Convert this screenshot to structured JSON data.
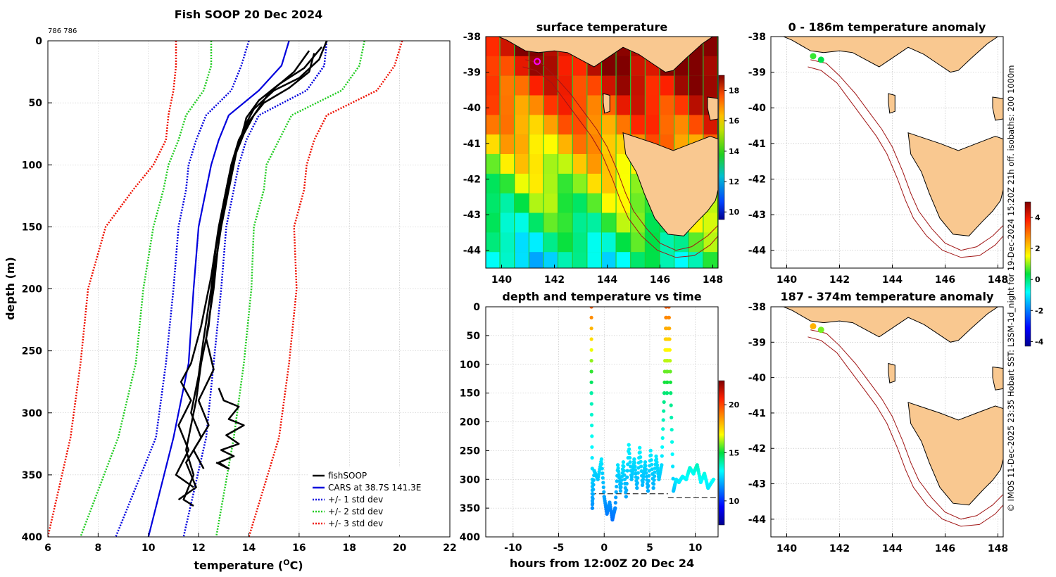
{
  "figure_title": "Fish SOOP 20 Dec 2024",
  "corner_id": "786 786",
  "credit": "© IMOS 11-Dec-2025 23:35 Hobart SST: L3SM-1d_night for 19-Dec-2024 15:20Z 21h off. isobaths: 200  1000m",
  "colors": {
    "fishsoop": "#000000",
    "cars": "#0000dd",
    "std1": "#0000dd",
    "std2": "#22cc22",
    "std3": "#ee1100",
    "land": "#f9c890",
    "grid": "#bbbbbb",
    "isobath": "#a01515",
    "track": "#ff00ff"
  },
  "chart_data": [
    {
      "id": "profile",
      "type": "line",
      "title": "Fish SOOP 20 Dec 2024",
      "xlabel": "temperature (",
      "xlabel_sup": "O",
      "xlabel_tail": "C)",
      "ylabel": "depth (m)",
      "xlim": [
        6,
        22
      ],
      "ylim": [
        0,
        400
      ],
      "y_reversed": true,
      "xticks": [
        6,
        8,
        10,
        12,
        14,
        16,
        18,
        20,
        22
      ],
      "yticks": [
        0,
        50,
        100,
        150,
        200,
        250,
        300,
        350,
        400
      ],
      "legend_position": "bottom-right",
      "legend": [
        "fishSOOP",
        "CARS at 38.7S 141.3E",
        "+/- 1 std dev",
        "+/- 2 std dev",
        "+/- 3 std dev"
      ],
      "cars_mean": {
        "temp": [
          15.6,
          15.3,
          14.4,
          13.2,
          12.8,
          12.5,
          12.3,
          12.0,
          11.8,
          11.6,
          11.0,
          10.0
        ],
        "depth": [
          0,
          20,
          40,
          60,
          80,
          100,
          120,
          150,
          200,
          260,
          320,
          400
        ]
      },
      "std1": {
        "lower": [
          14.0,
          13.7,
          13.3,
          12.3,
          11.9,
          11.6,
          11.5,
          11.2,
          11.0,
          10.7,
          10.3,
          8.7
        ],
        "upper": [
          17.1,
          17.0,
          16.3,
          14.4,
          13.9,
          13.6,
          13.4,
          13.1,
          12.9,
          12.6,
          12.3,
          11.4
        ]
      },
      "std2": {
        "lower": [
          12.5,
          12.5,
          12.2,
          11.5,
          11.2,
          10.8,
          10.6,
          10.2,
          9.8,
          9.5,
          8.8,
          7.3
        ],
        "upper": [
          18.6,
          18.4,
          17.7,
          15.7,
          15.2,
          14.7,
          14.6,
          14.2,
          14.1,
          13.8,
          13.4,
          12.7
        ]
      },
      "std3": {
        "lower": [
          11.1,
          11.1,
          11.0,
          10.8,
          10.7,
          10.2,
          9.4,
          8.3,
          7.6,
          7.3,
          6.9,
          6.0
        ],
        "upper": [
          20.1,
          19.8,
          19.1,
          17.1,
          16.6,
          16.3,
          16.2,
          15.8,
          15.9,
          15.6,
          15.2,
          14.0
        ]
      },
      "fishsoop_casts": [
        {
          "temp": [
            17.1,
            16.8,
            16.0,
            15.0,
            14.2,
            13.8,
            13.5,
            13.2,
            12.9,
            12.6,
            12.4,
            12.1,
            11.9,
            11.7,
            11.5,
            11.8,
            11.4,
            11.8
          ],
          "depth": [
            0,
            15,
            30,
            40,
            55,
            70,
            90,
            120,
            150,
            190,
            230,
            260,
            290,
            310,
            330,
            350,
            370,
            375
          ]
        },
        {
          "temp": [
            16.6,
            16.4,
            15.6,
            14.6,
            14.0,
            13.6,
            13.3,
            13.0,
            12.7,
            12.5,
            12.2,
            12.0,
            11.7,
            12.1,
            11.5,
            11.9,
            11.2
          ],
          "depth": [
            10,
            25,
            38,
            50,
            65,
            80,
            100,
            130,
            165,
            200,
            240,
            270,
            300,
            320,
            340,
            360,
            370
          ]
        },
        {
          "temp": [
            16.9,
            16.2,
            15.2,
            14.4,
            13.9,
            13.7,
            13.4,
            13.1,
            12.8,
            12.6,
            12.3,
            12.6,
            12.0,
            12.4,
            11.8,
            12.2
          ],
          "depth": [
            5,
            22,
            35,
            48,
            62,
            78,
            95,
            125,
            160,
            200,
            240,
            265,
            290,
            310,
            330,
            345
          ]
        },
        {
          "temp": [
            16.4,
            15.8,
            14.8,
            14.2,
            13.8,
            13.5,
            13.2,
            12.8,
            12.5,
            12.1,
            11.7,
            11.3,
            11.7,
            11.2,
            11.6,
            11.1,
            11.8
          ],
          "depth": [
            8,
            25,
            42,
            60,
            75,
            90,
            110,
            150,
            190,
            230,
            260,
            275,
            290,
            310,
            330,
            350,
            360
          ]
        },
        {
          "temp": [
            12.8,
            13.0,
            13.6,
            13.2,
            13.8,
            13.1,
            13.6,
            12.9,
            13.4,
            12.8,
            13.2,
            12.7
          ],
          "depth": [
            280,
            290,
            295,
            305,
            310,
            318,
            325,
            330,
            335,
            340,
            345,
            340
          ]
        }
      ]
    },
    {
      "id": "sst",
      "type": "heatmap",
      "title": "surface temperature",
      "xlim": [
        139.4,
        148.2
      ],
      "ylim": [
        -44.5,
        -38
      ],
      "xticks": [
        140,
        142,
        144,
        146,
        148
      ],
      "yticks": [
        -38,
        -39,
        -40,
        -41,
        -42,
        -43,
        -44
      ],
      "colorbar_ticks": [
        10,
        12,
        14,
        16,
        18
      ],
      "colorbar_range": [
        9.5,
        19
      ],
      "track_point": [
        141.35,
        -38.7
      ]
    },
    {
      "id": "time_series",
      "type": "scatter",
      "title": "depth and temperature vs time",
      "xlabel": "hours from 12:00Z 20 Dec 24",
      "xlim": [
        -13,
        12.5
      ],
      "ylim": [
        0,
        400
      ],
      "y_reversed": true,
      "xticks": [
        -10,
        -5,
        0,
        5,
        10
      ],
      "yticks": [
        0,
        50,
        100,
        150,
        200,
        250,
        300,
        350,
        400
      ],
      "colorbar_ticks": [
        10,
        15,
        20
      ],
      "colorbar_range": [
        7.5,
        22.5
      ],
      "bottom_depth_line": [
        {
          "x": [
            -1.5,
            7.0
          ],
          "y": [
            325,
            325
          ]
        },
        {
          "x": [
            7.0,
            12.5
          ],
          "y": [
            332,
            332
          ]
        }
      ],
      "hours": [
        -1.4,
        -1.4,
        -1.3,
        -1.3,
        -1.1,
        -0.7,
        -0.3,
        0.0,
        0.3,
        0.6,
        0.9,
        1.2,
        1.5,
        1.8,
        2.1,
        2.4,
        2.7,
        3.0,
        3.3,
        3.6,
        3.9,
        4.2,
        4.5,
        4.8,
        5.1,
        5.4,
        5.7,
        6.0,
        6.3,
        6.6,
        6.8,
        6.9,
        7.1,
        7.3,
        7.6,
        7.9,
        8.2,
        8.6,
        9.0,
        9.4,
        9.8,
        10.2,
        10.6,
        11.0,
        11.4,
        11.8,
        12.0
      ],
      "depths": [
        0,
        150,
        300,
        350,
        285,
        300,
        265,
        330,
        360,
        340,
        370,
        350,
        275,
        320,
        270,
        330,
        240,
        300,
        265,
        315,
        245,
        310,
        270,
        320,
        250,
        315,
        260,
        300,
        275,
        150,
        0,
        150,
        0,
        150,
        320,
        300,
        305,
        295,
        300,
        280,
        290,
        275,
        305,
        290,
        315,
        305,
        300
      ],
      "temps": [
        19.5,
        14.0,
        12.5,
        11.5,
        12.5,
        12.3,
        12.8,
        11.8,
        11.2,
        11.6,
        11.0,
        11.4,
        12.7,
        12.0,
        12.8,
        11.8,
        13.0,
        12.2,
        12.7,
        12.0,
        13.0,
        12.1,
        12.6,
        11.9,
        12.9,
        12.0,
        12.8,
        12.3,
        12.6,
        14.5,
        19.5,
        14.5,
        19.5,
        14.5,
        12.2,
        12.8,
        12.8,
        13.0,
        13.0,
        13.5,
        13.2,
        13.8,
        13.0,
        13.4,
        12.8,
        13.0,
        13.2
      ]
    },
    {
      "id": "anom_upper",
      "type": "scatter",
      "title": "0 - 186m temperature anomaly",
      "xlim": [
        139.4,
        148.2
      ],
      "ylim": [
        -44.5,
        -38
      ],
      "xticks": [
        140,
        142,
        144,
        146,
        148
      ],
      "yticks": [
        -38,
        -39,
        -40,
        -41,
        -42,
        -43,
        -44
      ],
      "points": [
        {
          "lon": 141.0,
          "lat": -38.55,
          "anomaly": 0.6
        },
        {
          "lon": 141.3,
          "lat": -38.65,
          "anomaly": 0.3
        }
      ]
    },
    {
      "id": "anom_lower",
      "type": "scatter",
      "title": "187 - 374m temperature anomaly",
      "xlim": [
        139.4,
        148.2
      ],
      "ylim": [
        -44.5,
        -38
      ],
      "xticks": [
        140,
        142,
        144,
        146,
        148
      ],
      "yticks": [
        -38,
        -39,
        -40,
        -41,
        -42,
        -43,
        -44
      ],
      "points": [
        {
          "lon": 141.0,
          "lat": -38.55,
          "anomaly": 2.3
        },
        {
          "lon": 141.3,
          "lat": -38.65,
          "anomaly": 0.9
        }
      ]
    }
  ],
  "anomaly_colorbar": {
    "ticks": [
      -4,
      -2,
      0,
      2,
      4
    ],
    "range": [
      -4.3,
      5
    ]
  }
}
